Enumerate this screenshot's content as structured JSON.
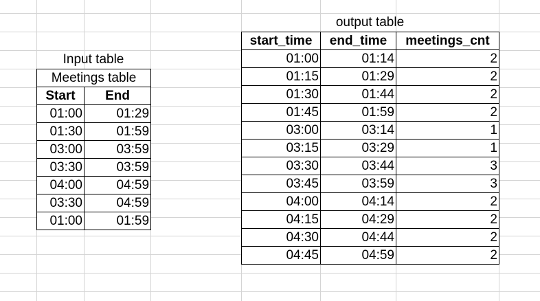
{
  "input": {
    "title": "Input table",
    "caption": "Meetings table",
    "headers": [
      "Start",
      "End"
    ],
    "rows": [
      [
        "01:00",
        "01:29"
      ],
      [
        "01:30",
        "01:59"
      ],
      [
        "03:00",
        "03:59"
      ],
      [
        "03:30",
        "03:59"
      ],
      [
        "04:00",
        "04:59"
      ],
      [
        "03:30",
        "04:59"
      ],
      [
        "01:00",
        "01:59"
      ]
    ]
  },
  "output": {
    "title": "output table",
    "headers": [
      "start_time",
      "end_time",
      "meetings_cnt"
    ],
    "rows": [
      [
        "01:00",
        "01:14",
        "2"
      ],
      [
        "01:15",
        "01:29",
        "2"
      ],
      [
        "01:30",
        "01:44",
        "2"
      ],
      [
        "01:45",
        "01:59",
        "2"
      ],
      [
        "03:00",
        "03:14",
        "1"
      ],
      [
        "03:15",
        "03:29",
        "1"
      ],
      [
        "03:30",
        "03:44",
        "3"
      ],
      [
        "03:45",
        "03:59",
        "3"
      ],
      [
        "04:00",
        "04:14",
        "2"
      ],
      [
        "04:15",
        "04:29",
        "2"
      ],
      [
        "04:30",
        "04:44",
        "2"
      ],
      [
        "04:45",
        "04:59",
        "2"
      ]
    ]
  }
}
